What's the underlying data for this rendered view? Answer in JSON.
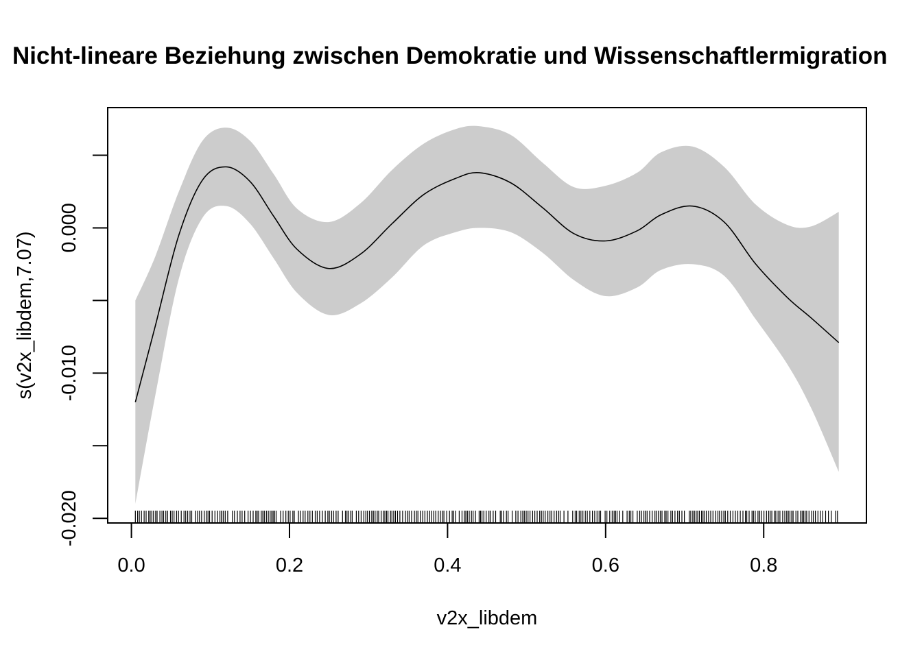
{
  "chart_data": {
    "type": "line",
    "title": "Nicht-lineare Beziehung zwischen Demokratie und Wissenschaftlermigration",
    "xlabel": "v2x_libdem",
    "ylabel": "s(v2x_libdem,7.07)",
    "xlim": [
      -0.03,
      0.93
    ],
    "ylim": [
      -0.02032,
      0.00828
    ],
    "x_ticks": [
      {
        "value": 0.0,
        "label": "0.0"
      },
      {
        "value": 0.2,
        "label": "0.2"
      },
      {
        "value": 0.4,
        "label": "0.4"
      },
      {
        "value": 0.6,
        "label": "0.6"
      },
      {
        "value": 0.8,
        "label": "0.8"
      }
    ],
    "y_ticks": [
      {
        "value": -0.02,
        "label": "-0.020"
      },
      {
        "value": -0.015,
        "label": ""
      },
      {
        "value": -0.01,
        "label": "-0.010"
      },
      {
        "value": -0.005,
        "label": ""
      },
      {
        "value": 0.0,
        "label": "0.000"
      },
      {
        "value": 0.005,
        "label": ""
      }
    ],
    "grid": false,
    "band_color": "#cccccc",
    "line_color": "#000000",
    "series": [
      {
        "x": [
          0.005,
          0.03,
          0.06,
          0.09,
          0.12,
          0.15,
          0.18,
          0.21,
          0.25,
          0.29,
          0.33,
          0.37,
          0.41,
          0.44,
          0.48,
          0.52,
          0.56,
          0.6,
          0.64,
          0.67,
          0.71,
          0.75,
          0.79,
          0.83,
          0.86,
          0.895
        ],
        "fit": [
          -0.012,
          -0.0068,
          -0.0005,
          0.0033,
          0.0042,
          0.0032,
          0.0008,
          -0.0015,
          -0.0028,
          -0.0018,
          0.0003,
          0.0023,
          0.0034,
          0.0038,
          0.0031,
          0.0014,
          -0.0004,
          -0.0009,
          -0.0002,
          0.0009,
          0.0015,
          0.0004,
          -0.0025,
          -0.0048,
          -0.0062,
          -0.0079
        ],
        "upper": [
          -0.005,
          -0.002,
          0.0025,
          0.006,
          0.0069,
          0.006,
          0.0037,
          0.0013,
          0.0004,
          0.0017,
          0.004,
          0.0058,
          0.0068,
          0.007,
          0.0064,
          0.0045,
          0.0028,
          0.0029,
          0.0038,
          0.0052,
          0.0056,
          0.0042,
          0.0016,
          0.0002,
          0.0001,
          0.0011
        ],
        "lower": [
          -0.019,
          -0.0116,
          -0.0035,
          0.0007,
          0.0015,
          0.0003,
          -0.0021,
          -0.0045,
          -0.006,
          -0.0052,
          -0.0034,
          -0.0012,
          -0.0003,
          0.0,
          -0.0003,
          -0.0017,
          -0.0036,
          -0.0047,
          -0.0041,
          -0.0029,
          -0.0025,
          -0.0033,
          -0.0063,
          -0.0094,
          -0.0124,
          -0.0168
        ]
      }
    ]
  }
}
